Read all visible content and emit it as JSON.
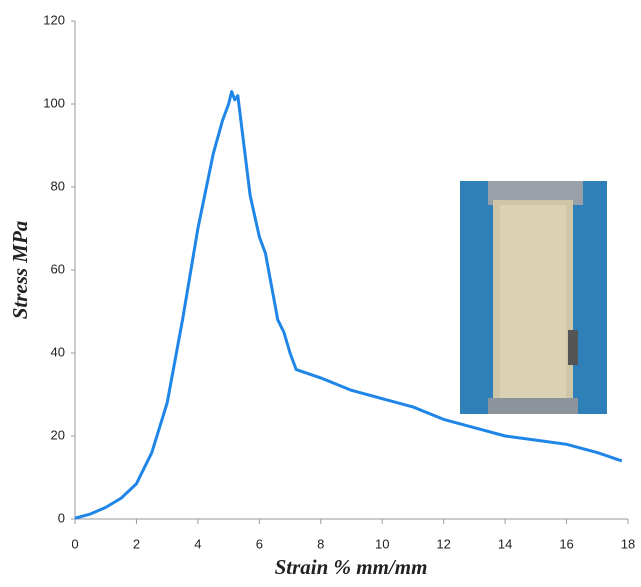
{
  "chart_data": {
    "type": "line",
    "xlabel": "Strain % mm/mm",
    "ylabel": "Stress MPa",
    "x": [
      0,
      0.5,
      1,
      1.5,
      2,
      2.5,
      3,
      3.5,
      4,
      4.5,
      4.8,
      5,
      5.1,
      5.2,
      5.3,
      5.5,
      5.7,
      6,
      6.2,
      6.4,
      6.6,
      6.8,
      7,
      7.2,
      8,
      9,
      10,
      11,
      12,
      13,
      14,
      15,
      16,
      17,
      17.8
    ],
    "series": [
      {
        "color": "#1f86e8",
        "values": [
          0.2,
          1.2,
          2.8,
          5,
          8.5,
          16,
          28,
          48,
          70,
          88,
          96,
          100,
          103,
          101,
          102,
          90,
          78,
          68,
          64,
          56,
          48,
          45,
          40,
          36,
          34,
          31,
          29,
          27,
          24,
          22,
          20,
          19,
          18,
          16,
          14
        ]
      }
    ],
    "xlim": [
      0,
      18
    ],
    "xticks": [
      0,
      2,
      4,
      6,
      8,
      10,
      12,
      14,
      16,
      18
    ],
    "ylim": [
      0,
      120
    ],
    "yticks": [
      0,
      20,
      40,
      60,
      80,
      100,
      120
    ],
    "grid": false
  }
}
